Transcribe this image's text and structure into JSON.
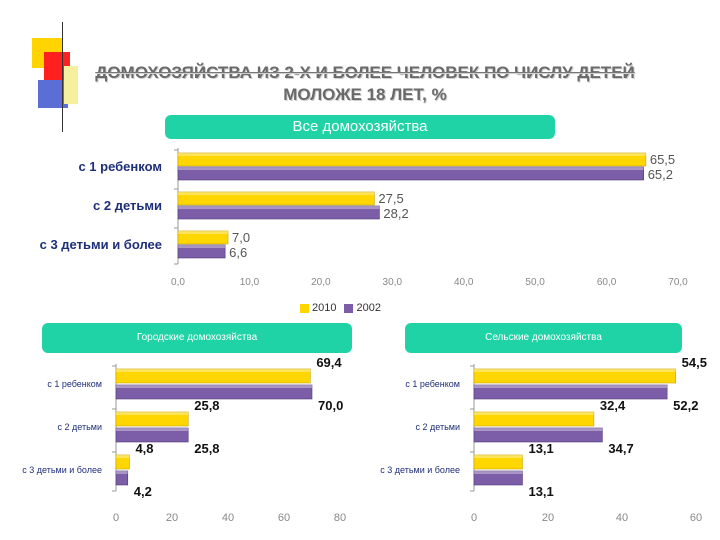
{
  "title": {
    "line1": "ДОМОХОЗЯЙСТВА ИЗ 2-Х И БОЛЕЕ ЧЕЛОВЕК ПО ЧИСЛУ ДЕТЕЙ",
    "line2": "МОЛОЖЕ 18 ЛЕТ, %"
  },
  "legend": [
    {
      "name": "2010",
      "color": "#ffd600"
    },
    {
      "name": "2002",
      "color": "#7b5ea7"
    }
  ],
  "colors": {
    "accent": "#1fd3a6",
    "series_2010": "#ffd600",
    "series_2002": "#7b5ea7"
  },
  "chart_data": [
    {
      "type": "bar",
      "orientation": "horizontal",
      "title": "Все домохозяйства",
      "categories": [
        "с 1 ребенком",
        "с 2 детьми",
        "с 3  детьми и более"
      ],
      "series": [
        {
          "name": "2010",
          "values": [
            65.5,
            27.5,
            7.0
          ],
          "labels": [
            "65,5",
            "27,5",
            "7,0"
          ]
        },
        {
          "name": "2002",
          "values": [
            65.2,
            28.2,
            6.6
          ],
          "labels": [
            "65,2",
            "28,2",
            "6,6"
          ]
        }
      ],
      "xlim": [
        0,
        70
      ],
      "ticks": [
        "0,0",
        "10,0",
        "20,0",
        "30,0",
        "40,0",
        "50,0",
        "60,0",
        "70,0"
      ],
      "legend": "bottom"
    },
    {
      "type": "bar",
      "orientation": "horizontal",
      "title": "Городские домохозяйства",
      "categories": [
        "с 1 ребенком",
        "с 2 детьми",
        "с 3  детьми и более"
      ],
      "series": [
        {
          "name": "2010",
          "values": [
            69.4,
            25.8,
            4.8
          ],
          "labels": [
            "69,4",
            "25,8",
            "4,8"
          ]
        },
        {
          "name": "2002",
          "values": [
            70.0,
            25.8,
            4.2
          ],
          "labels": [
            "70,0",
            "25,8",
            "4,2"
          ]
        }
      ],
      "xlim": [
        0,
        80
      ],
      "ticks": [
        "0",
        "20",
        "40",
        "60",
        "80"
      ]
    },
    {
      "type": "bar",
      "orientation": "horizontal",
      "title": "Сельские домохозяйства",
      "categories": [
        "с 1 ребенком",
        "с 2 детьми",
        "с 3  детьми и более"
      ],
      "series": [
        {
          "name": "2010",
          "values": [
            54.5,
            32.4,
            13.1
          ],
          "labels": [
            "54,5",
            "32,4",
            "13,1"
          ]
        },
        {
          "name": "2002",
          "values": [
            52.2,
            34.7,
            13.1
          ],
          "labels": [
            "52,2",
            "34,7",
            "13,1"
          ]
        }
      ],
      "xlim": [
        0,
        60
      ],
      "ticks": [
        "0",
        "20",
        "40",
        "60"
      ]
    }
  ]
}
